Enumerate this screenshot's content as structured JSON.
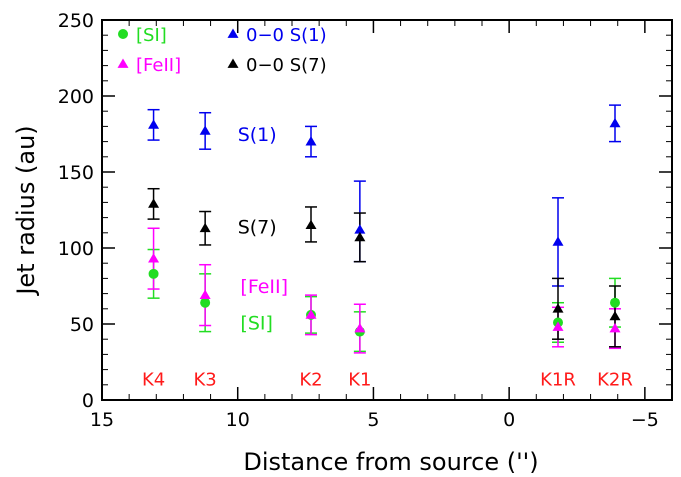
{
  "chart_data": {
    "type": "scatter",
    "xlabel": "Distance from source ('')",
    "ylabel": "Jet radius (au)",
    "xlim": [
      15,
      -6
    ],
    "ylim": [
      0,
      250
    ],
    "x_ticks": [
      15,
      10,
      5,
      0,
      -5
    ],
    "x_tick_labels": [
      "15",
      "10",
      "5",
      "0",
      "−5"
    ],
    "y_ticks": [
      0,
      50,
      100,
      150,
      200,
      250
    ],
    "y_tick_labels": [
      "0",
      "50",
      "100",
      "150",
      "200",
      "250"
    ],
    "grid": false,
    "legend_position": "top-left",
    "series": [
      {
        "key": "si",
        "name": "[SI]",
        "color": "#22dd22",
        "marker": "circle",
        "points": [
          {
            "x": 13.1,
            "y": 83,
            "err_low": 16,
            "err_high": 16
          },
          {
            "x": 11.2,
            "y": 64,
            "err_low": 19,
            "err_high": 19
          },
          {
            "x": 7.3,
            "y": 56,
            "err_low": 12,
            "err_high": 12
          },
          {
            "x": 5.5,
            "y": 45,
            "err_low": 13,
            "err_high": 13
          },
          {
            "x": -1.8,
            "y": 51,
            "err_low": 13,
            "err_high": 13
          },
          {
            "x": -3.9,
            "y": 64,
            "err_low": 16,
            "err_high": 16
          }
        ]
      },
      {
        "key": "feii",
        "name": "[FeII]",
        "color": "#ff00ff",
        "marker": "triangle",
        "points": [
          {
            "x": 13.1,
            "y": 93,
            "err_low": 20,
            "err_high": 20
          },
          {
            "x": 11.2,
            "y": 69,
            "err_low": 20,
            "err_high": 20
          },
          {
            "x": 7.3,
            "y": 56,
            "err_low": 13,
            "err_high": 13
          },
          {
            "x": 5.5,
            "y": 47,
            "err_low": 16,
            "err_high": 16
          },
          {
            "x": -1.8,
            "y": 48,
            "err_low": 13,
            "err_high": 13
          },
          {
            "x": -3.9,
            "y": 47,
            "err_low": 13,
            "err_high": 13
          }
        ]
      },
      {
        "key": "s1",
        "name": "0−0 S(1)",
        "color": "#0000ee",
        "marker": "triangle",
        "points": [
          {
            "x": 13.1,
            "y": 181,
            "err_low": 10,
            "err_high": 10
          },
          {
            "x": 11.2,
            "y": 177,
            "err_low": 12,
            "err_high": 12
          },
          {
            "x": 7.3,
            "y": 170,
            "err_low": 10,
            "err_high": 10
          },
          {
            "x": 5.5,
            "y": 112,
            "err_low": 21,
            "err_high": 32
          },
          {
            "x": -1.8,
            "y": 104,
            "err_low": 29,
            "err_high": 29
          },
          {
            "x": -3.9,
            "y": 182,
            "err_low": 12,
            "err_high": 12
          }
        ]
      },
      {
        "key": "s7",
        "name": "0−0 S(7)",
        "color": "#000000",
        "marker": "triangle",
        "points": [
          {
            "x": 13.1,
            "y": 129,
            "err_low": 10,
            "err_high": 10
          },
          {
            "x": 11.2,
            "y": 113,
            "err_low": 11,
            "err_high": 11
          },
          {
            "x": 7.3,
            "y": 115,
            "err_low": 11,
            "err_high": 12
          },
          {
            "x": 5.5,
            "y": 107,
            "err_low": 16,
            "err_high": 16
          },
          {
            "x": -1.8,
            "y": 60,
            "err_low": 20,
            "err_high": 20
          },
          {
            "x": -3.9,
            "y": 55,
            "err_low": 20,
            "err_high": 20
          }
        ]
      }
    ],
    "annotations": [
      {
        "text": "S(1)",
        "x": 10.0,
        "y": 175,
        "color": "#0000ee"
      },
      {
        "text": "S(7)",
        "x": 10.0,
        "y": 114,
        "color": "#000000"
      },
      {
        "text": "[FeII]",
        "x": 9.9,
        "y": 75,
        "color": "#ff00ff"
      },
      {
        "text": "[SI]",
        "x": 9.9,
        "y": 51,
        "color": "#22dd22"
      }
    ],
    "knot_labels": [
      {
        "text": "K4",
        "x": 13.1
      },
      {
        "text": "K3",
        "x": 11.2
      },
      {
        "text": "K2",
        "x": 7.3
      },
      {
        "text": "K1",
        "x": 5.5
      },
      {
        "text": "K1R",
        "x": -1.8
      },
      {
        "text": "K2R",
        "x": -3.9
      }
    ],
    "knot_label_color": "#ff1a1a",
    "knot_label_y": 14
  }
}
